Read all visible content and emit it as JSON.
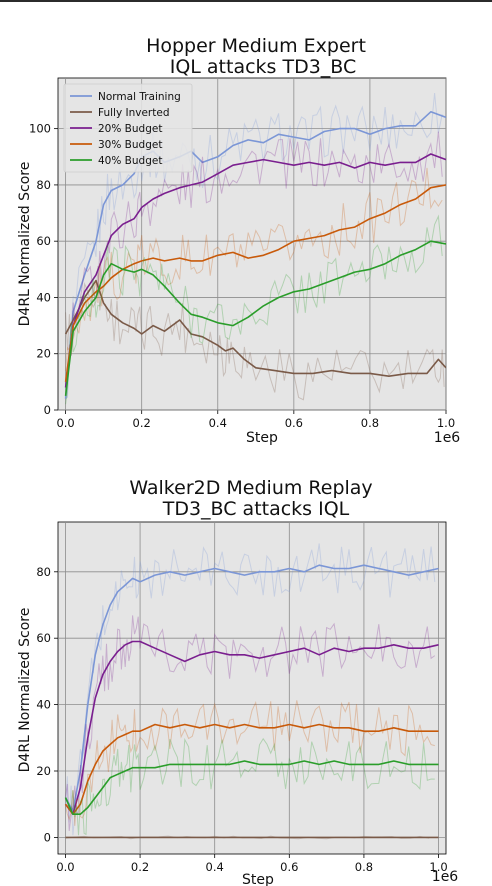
{
  "chart_data": [
    {
      "type": "line",
      "title_line1": "Hopper Medium Expert",
      "title_line2": "IQL attacks TD3_BC",
      "xlabel": "Step",
      "ylabel": "D4RL Normalized Score",
      "x_multiplier": "1e6",
      "xlim": [
        -0.02,
        1.0
      ],
      "ylim": [
        0,
        118
      ],
      "xticks": [
        0.0,
        0.2,
        0.4,
        0.6,
        0.8,
        1.0
      ],
      "xtick_labels": [
        "0.0",
        "0.2",
        "0.4",
        "0.6",
        "0.8",
        "1.0"
      ],
      "yticks": [
        0,
        20,
        40,
        60,
        80,
        100
      ],
      "ytick_labels": [
        "0",
        "20",
        "40",
        "60",
        "80",
        "100"
      ],
      "grid": true,
      "legend_position": "top-left",
      "series": [
        {
          "name": "Normal Training",
          "color": "#7b96d6",
          "x": [
            0.0,
            0.02,
            0.05,
            0.08,
            0.1,
            0.12,
            0.15,
            0.18,
            0.2,
            0.23,
            0.26,
            0.3,
            0.33,
            0.36,
            0.4,
            0.44,
            0.48,
            0.52,
            0.56,
            0.6,
            0.64,
            0.68,
            0.72,
            0.76,
            0.8,
            0.84,
            0.88,
            0.92,
            0.96,
            1.0
          ],
          "y": [
            4,
            35,
            48,
            60,
            73,
            78,
            80,
            84,
            90,
            92,
            88,
            90,
            92,
            88,
            90,
            94,
            96,
            95,
            98,
            97,
            96,
            99,
            100,
            100,
            98,
            100,
            101,
            101,
            106,
            104
          ]
        },
        {
          "name": "Fully Inverted",
          "color": "#7a5a48",
          "x": [
            0.0,
            0.02,
            0.05,
            0.08,
            0.1,
            0.12,
            0.15,
            0.18,
            0.2,
            0.23,
            0.26,
            0.3,
            0.33,
            0.36,
            0.4,
            0.42,
            0.44,
            0.47,
            0.5,
            0.55,
            0.6,
            0.65,
            0.7,
            0.75,
            0.8,
            0.85,
            0.9,
            0.95,
            0.98,
            1.0
          ],
          "y": [
            27,
            32,
            40,
            46,
            38,
            34,
            31,
            29,
            27,
            30,
            28,
            32,
            27,
            26,
            23,
            21,
            22,
            18,
            15,
            14,
            13,
            13,
            14,
            13,
            13,
            12,
            13,
            13,
            18,
            15
          ]
        },
        {
          "name": "20% Budget",
          "color": "#7a1f8f",
          "x": [
            0.0,
            0.02,
            0.05,
            0.08,
            0.1,
            0.12,
            0.15,
            0.18,
            0.2,
            0.23,
            0.26,
            0.3,
            0.33,
            0.36,
            0.4,
            0.44,
            0.48,
            0.52,
            0.56,
            0.6,
            0.64,
            0.68,
            0.72,
            0.76,
            0.8,
            0.84,
            0.88,
            0.92,
            0.96,
            1.0
          ],
          "y": [
            8,
            30,
            42,
            48,
            55,
            62,
            66,
            68,
            72,
            75,
            77,
            79,
            80,
            81,
            84,
            87,
            88,
            89,
            88,
            87,
            88,
            87,
            88,
            86,
            88,
            87,
            88,
            88,
            91,
            89
          ]
        },
        {
          "name": "30% Budget",
          "color": "#c85a0a",
          "x": [
            0.0,
            0.02,
            0.05,
            0.08,
            0.1,
            0.12,
            0.15,
            0.18,
            0.2,
            0.23,
            0.26,
            0.3,
            0.33,
            0.36,
            0.4,
            0.44,
            0.48,
            0.52,
            0.56,
            0.6,
            0.64,
            0.68,
            0.72,
            0.76,
            0.8,
            0.84,
            0.88,
            0.92,
            0.96,
            1.0
          ],
          "y": [
            10,
            30,
            38,
            42,
            44,
            47,
            50,
            52,
            53,
            54,
            53,
            54,
            53,
            53,
            55,
            56,
            54,
            55,
            57,
            60,
            61,
            62,
            64,
            65,
            68,
            70,
            73,
            75,
            79,
            80
          ]
        },
        {
          "name": "40% Budget",
          "color": "#2a9d2a",
          "x": [
            0.0,
            0.02,
            0.05,
            0.08,
            0.1,
            0.12,
            0.15,
            0.18,
            0.2,
            0.23,
            0.26,
            0.3,
            0.33,
            0.36,
            0.4,
            0.44,
            0.48,
            0.52,
            0.56,
            0.6,
            0.64,
            0.68,
            0.72,
            0.76,
            0.8,
            0.84,
            0.88,
            0.92,
            0.96,
            1.0
          ],
          "y": [
            5,
            28,
            35,
            40,
            48,
            52,
            50,
            49,
            50,
            48,
            44,
            38,
            34,
            33,
            31,
            30,
            33,
            37,
            40,
            42,
            43,
            45,
            47,
            49,
            50,
            52,
            55,
            57,
            60,
            59
          ]
        }
      ]
    },
    {
      "type": "line",
      "title_line1": "Walker2D Medium Replay",
      "title_line2": "TD3_BC attacks IQL",
      "xlabel": "Step",
      "ylabel": "D4RL Normalized Score",
      "x_multiplier": "1e6",
      "xlim": [
        -0.02,
        1.02
      ],
      "ylim": [
        -5,
        95
      ],
      "xticks": [
        0.0,
        0.2,
        0.4,
        0.6,
        0.8,
        1.0
      ],
      "xtick_labels": [
        "0.0",
        "0.2",
        "0.4",
        "0.6",
        "0.8",
        "1.0"
      ],
      "yticks": [
        0,
        20,
        40,
        60,
        80
      ],
      "ytick_labels": [
        "0",
        "20",
        "40",
        "60",
        "80"
      ],
      "grid": true,
      "series": [
        {
          "name": "Normal Training",
          "color": "#7b96d6",
          "x": [
            0.0,
            0.02,
            0.04,
            0.06,
            0.08,
            0.1,
            0.12,
            0.14,
            0.16,
            0.18,
            0.2,
            0.24,
            0.28,
            0.32,
            0.36,
            0.4,
            0.44,
            0.48,
            0.52,
            0.56,
            0.6,
            0.64,
            0.68,
            0.72,
            0.76,
            0.8,
            0.84,
            0.88,
            0.92,
            0.96,
            1.0
          ],
          "y": [
            12,
            8,
            20,
            40,
            55,
            64,
            70,
            74,
            76,
            78,
            77,
            79,
            80,
            79,
            80,
            81,
            80,
            79,
            80,
            80,
            81,
            80,
            82,
            81,
            81,
            82,
            81,
            80,
            79,
            80,
            81
          ]
        },
        {
          "name": "Fully Inverted",
          "color": "#7a5a48",
          "x": [
            0.0,
            0.1,
            0.2,
            0.3,
            0.4,
            0.5,
            0.6,
            0.7,
            0.8,
            0.9,
            1.0
          ],
          "y": [
            0,
            0,
            0,
            0,
            0,
            0,
            0,
            0,
            0,
            0,
            0
          ]
        },
        {
          "name": "20% Budget",
          "color": "#7a1f8f",
          "x": [
            0.0,
            0.02,
            0.04,
            0.06,
            0.08,
            0.1,
            0.12,
            0.14,
            0.16,
            0.18,
            0.2,
            0.24,
            0.28,
            0.32,
            0.36,
            0.4,
            0.44,
            0.48,
            0.52,
            0.56,
            0.6,
            0.64,
            0.68,
            0.72,
            0.76,
            0.8,
            0.84,
            0.88,
            0.92,
            0.96,
            1.0
          ],
          "y": [
            10,
            7,
            15,
            30,
            42,
            49,
            53,
            56,
            58,
            59,
            59,
            57,
            55,
            53,
            55,
            56,
            55,
            55,
            54,
            55,
            56,
            57,
            55,
            57,
            56,
            57,
            57,
            58,
            57,
            57,
            58
          ]
        },
        {
          "name": "30% Budget",
          "color": "#c85a0a",
          "x": [
            0.0,
            0.02,
            0.04,
            0.06,
            0.08,
            0.1,
            0.12,
            0.14,
            0.16,
            0.18,
            0.2,
            0.24,
            0.28,
            0.32,
            0.36,
            0.4,
            0.44,
            0.48,
            0.52,
            0.56,
            0.6,
            0.64,
            0.68,
            0.72,
            0.76,
            0.8,
            0.84,
            0.88,
            0.92,
            0.96,
            1.0
          ],
          "y": [
            10,
            7,
            10,
            17,
            22,
            26,
            28,
            30,
            31,
            32,
            32,
            34,
            33,
            34,
            33,
            34,
            33,
            34,
            33,
            33,
            34,
            33,
            34,
            33,
            33,
            32,
            32,
            33,
            32,
            32,
            32
          ]
        },
        {
          "name": "40% Budget",
          "color": "#2a9d2a",
          "x": [
            0.0,
            0.02,
            0.04,
            0.06,
            0.08,
            0.1,
            0.12,
            0.14,
            0.16,
            0.18,
            0.2,
            0.24,
            0.28,
            0.32,
            0.36,
            0.4,
            0.44,
            0.48,
            0.52,
            0.56,
            0.6,
            0.64,
            0.68,
            0.72,
            0.76,
            0.8,
            0.84,
            0.88,
            0.92,
            0.96,
            1.0
          ],
          "y": [
            12,
            7,
            7,
            9,
            12,
            15,
            18,
            19,
            20,
            21,
            21,
            21,
            22,
            22,
            22,
            22,
            22,
            23,
            22,
            22,
            22,
            23,
            22,
            23,
            22,
            22,
            22,
            23,
            22,
            22,
            22
          ]
        }
      ]
    }
  ]
}
